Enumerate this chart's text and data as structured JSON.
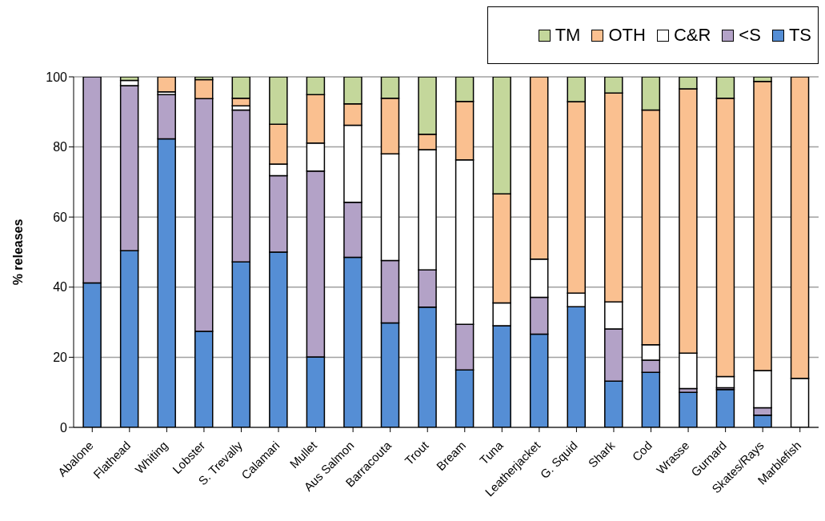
{
  "chart_data": {
    "type": "bar",
    "stacked": true,
    "ylabel": "% releases",
    "categories": [
      "Abalone",
      "Flathead",
      "Whiting",
      "Lobster",
      "S. Trevally",
      "Calamari",
      "Mullet",
      "Aus Salmon",
      "Barracouta",
      "Trout",
      "Bream",
      "Tuna",
      "Leatherjacket",
      "G. Squid",
      "Shark",
      "Cod",
      "Wrasse",
      "Gurnard",
      "Skates/Rays",
      "Marblefish"
    ],
    "series": [
      {
        "name": "TS",
        "color": "#558ed5",
        "values": [
          41.2,
          50.4,
          82.3,
          27.4,
          47.2,
          50,
          20.1,
          48.5,
          29.8,
          34.3,
          16.4,
          29,
          26.6,
          34.4,
          13.2,
          15.7,
          10,
          10.8,
          3.5,
          0
        ]
      },
      {
        "name": "<S",
        "color": "#b3a2c7",
        "values": [
          58.8,
          47.1,
          12.6,
          66.4,
          43.3,
          21.8,
          53,
          15.7,
          17.8,
          10.6,
          13,
          0,
          10.5,
          0,
          14.9,
          3.5,
          1.1,
          0.5,
          2.1,
          0
        ]
      },
      {
        "name": "C&R",
        "color": "#ffffff",
        "values": [
          0,
          1.5,
          0.8,
          0,
          1.2,
          3.3,
          8,
          22,
          30.4,
          34.3,
          46.9,
          6.5,
          10.9,
          3.9,
          7.7,
          4.4,
          10.1,
          3.2,
          10.6,
          14
        ]
      },
      {
        "name": "OTH",
        "color": "#fac090",
        "values": [
          0,
          0,
          4.3,
          5.4,
          2.2,
          11.4,
          13.8,
          6.1,
          15.9,
          4.4,
          16.7,
          31.1,
          52,
          54.6,
          59.6,
          66.9,
          75.4,
          79.4,
          82.5,
          86
        ]
      },
      {
        "name": "TM",
        "color": "#c4d79b",
        "values": [
          0,
          1,
          0,
          0.8,
          6.1,
          13.5,
          5.1,
          7.7,
          6.1,
          16.4,
          7,
          33.4,
          0,
          7.1,
          4.6,
          9.5,
          3.4,
          6.1,
          1.3,
          0
        ]
      }
    ],
    "ylim": [
      0,
      100
    ],
    "yticks": [
      0,
      20,
      40,
      60,
      80,
      100
    ],
    "grid": "y",
    "legend": "top right"
  }
}
